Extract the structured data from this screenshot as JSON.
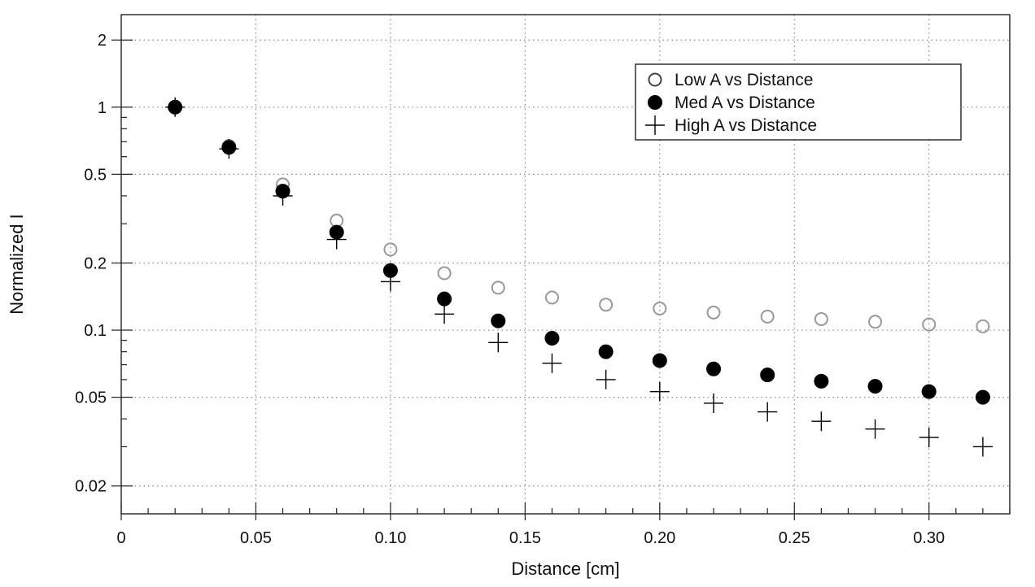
{
  "chart_data": {
    "type": "scatter",
    "title": "",
    "xlabel": "Distance [cm]",
    "ylabel": "Normalized I",
    "xlim": [
      0,
      0.33
    ],
    "ylim": [
      0.015,
      2.6
    ],
    "y_scale": "log",
    "grid": true,
    "legend_position": "top-right",
    "x_ticks": [
      {
        "value": 0,
        "label": "0"
      },
      {
        "value": 0.05,
        "label": "0.05"
      },
      {
        "value": 0.1,
        "label": "0.10"
      },
      {
        "value": 0.15,
        "label": "0.15"
      },
      {
        "value": 0.2,
        "label": "0.20"
      },
      {
        "value": 0.25,
        "label": "0.25"
      },
      {
        "value": 0.3,
        "label": "0.30"
      }
    ],
    "y_ticks": [
      {
        "value": 0.02,
        "label": "0.02"
      },
      {
        "value": 0.05,
        "label": "0.05"
      },
      {
        "value": 0.1,
        "label": "0.1"
      },
      {
        "value": 0.2,
        "label": "0.2"
      },
      {
        "value": 0.5,
        "label": "0.5"
      },
      {
        "value": 1,
        "label": "1"
      },
      {
        "value": 2,
        "label": "2"
      }
    ],
    "x": [
      0.02,
      0.04,
      0.06,
      0.08,
      0.1,
      0.12,
      0.14,
      0.16,
      0.18,
      0.2,
      0.22,
      0.24,
      0.26,
      0.28,
      0.3,
      0.32
    ],
    "series": [
      {
        "name": "Low A vs Distance",
        "marker": "open-circle",
        "color": "#999999",
        "values": [
          1.0,
          0.67,
          0.45,
          0.31,
          0.23,
          0.18,
          0.155,
          0.14,
          0.13,
          0.125,
          0.12,
          0.115,
          0.112,
          0.109,
          0.106,
          0.104
        ]
      },
      {
        "name": "Med A vs Distance",
        "marker": "filled-circle",
        "color": "#000000",
        "values": [
          1.0,
          0.66,
          0.42,
          0.275,
          0.185,
          0.138,
          0.11,
          0.092,
          0.08,
          0.073,
          0.067,
          0.063,
          0.059,
          0.056,
          0.053,
          0.05
        ]
      },
      {
        "name": "High A vs Distance",
        "marker": "plus",
        "color": "#000000",
        "values": [
          1.0,
          0.65,
          0.4,
          0.255,
          0.165,
          0.118,
          0.088,
          0.071,
          0.06,
          0.053,
          0.047,
          0.043,
          0.039,
          0.036,
          0.033,
          0.03
        ]
      }
    ]
  }
}
